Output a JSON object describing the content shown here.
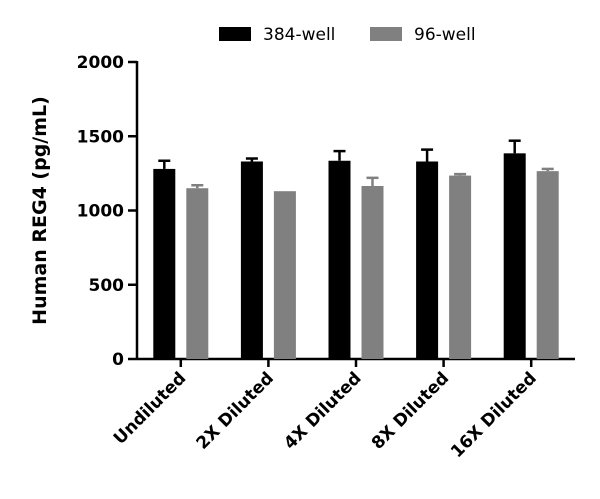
{
  "chart_data": {
    "type": "bar",
    "title": "",
    "xlabel": "",
    "ylabel": "Human REG4 (pg/mL)",
    "ylim": [
      0,
      2000
    ],
    "yticks": [
      0,
      500,
      1000,
      1500,
      2000
    ],
    "categories": [
      "Undiluted",
      "2X Diluted",
      "4X Diluted",
      "8X Diluted",
      "16X Diluted"
    ],
    "legend_position": "top",
    "series": [
      {
        "name": "384-well",
        "color": "#000000",
        "values": [
          1280,
          1330,
          1335,
          1330,
          1385
        ],
        "error": [
          55,
          20,
          65,
          80,
          85
        ]
      },
      {
        "name": "96-well",
        "color": "#808080",
        "values": [
          1150,
          1130,
          1165,
          1235,
          1265
        ],
        "error": [
          20,
          0,
          55,
          10,
          15
        ]
      }
    ]
  }
}
